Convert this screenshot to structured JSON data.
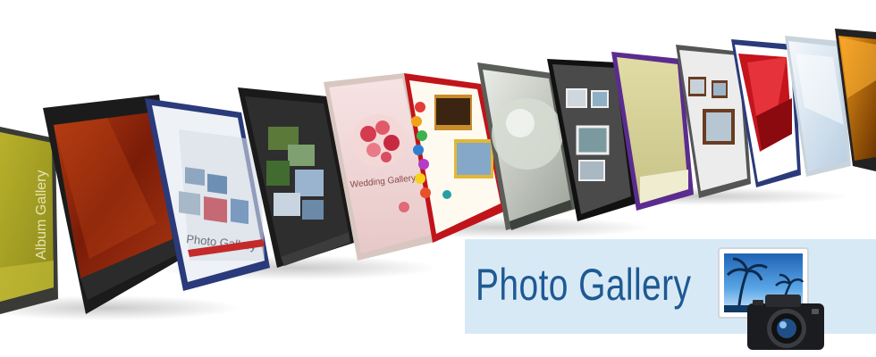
{
  "banner": {
    "title": "Photo Gallery",
    "title_color": "#1e5a93",
    "title_box_color": "#d8e9f6",
    "icon": "photo-camera-icon"
  },
  "panels": [
    {
      "name": "gallery-template-olive",
      "theme": "olive",
      "caption": "Album Gallery"
    },
    {
      "name": "gallery-template-dark-red",
      "theme": "dark-red"
    },
    {
      "name": "gallery-template-blue-frame",
      "theme": "blue-frame",
      "caption": "Photo Gallery"
    },
    {
      "name": "gallery-template-black-collage",
      "theme": "black-collage"
    },
    {
      "name": "gallery-template-pink-roses",
      "theme": "pink-roses",
      "caption": "Wedding Gallery"
    },
    {
      "name": "gallery-template-colorful-dots",
      "theme": "colorful-dots"
    },
    {
      "name": "gallery-template-glass-sphere",
      "theme": "glass-sphere"
    },
    {
      "name": "gallery-template-dark-polaroids",
      "theme": "dark-polaroids"
    },
    {
      "name": "gallery-template-purple-khaki",
      "theme": "purple-khaki"
    },
    {
      "name": "gallery-template-wood-frames",
      "theme": "wood-frames"
    },
    {
      "name": "gallery-template-red-abstract",
      "theme": "red-abstract"
    },
    {
      "name": "gallery-template-light-blue",
      "theme": "light-blue"
    },
    {
      "name": "gallery-template-orange-dark",
      "theme": "orange-dark"
    }
  ]
}
